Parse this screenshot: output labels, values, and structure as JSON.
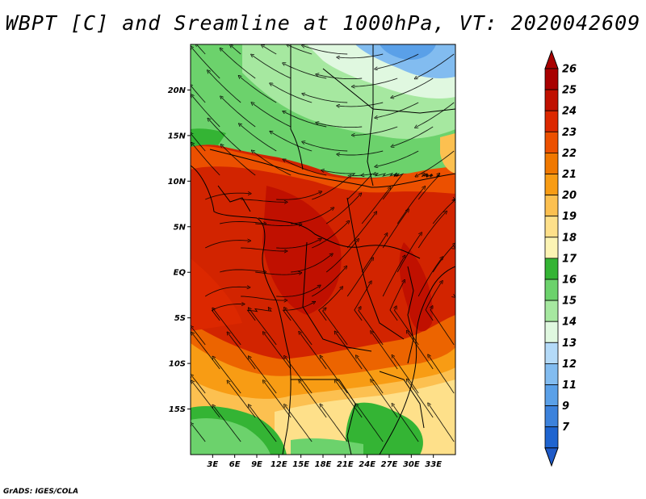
{
  "title": "WBPT [C] and Sreamline at 1000hPa, VT: 2020042609",
  "credit": "GrADS: IGES/COLA",
  "map": {
    "lat_range": [
      -20,
      25
    ],
    "lon_range": [
      0,
      36
    ],
    "lat_ticks": [
      {
        "label": "20N",
        "value": 20
      },
      {
        "label": "15N",
        "value": 15
      },
      {
        "label": "10N",
        "value": 10
      },
      {
        "label": "5N",
        "value": 5
      },
      {
        "label": "EQ",
        "value": 0
      },
      {
        "label": "5S",
        "value": -5
      },
      {
        "label": "10S",
        "value": -10
      },
      {
        "label": "15S",
        "value": -15
      }
    ],
    "lon_ticks": [
      {
        "label": "3E",
        "value": 3
      },
      {
        "label": "6E",
        "value": 6
      },
      {
        "label": "9E",
        "value": 9
      },
      {
        "label": "12E",
        "value": 12
      },
      {
        "label": "15E",
        "value": 15
      },
      {
        "label": "18E",
        "value": 18
      },
      {
        "label": "21E",
        "value": 21
      },
      {
        "label": "24E",
        "value": 24
      },
      {
        "label": "27E",
        "value": 27
      },
      {
        "label": "30E",
        "value": 30
      },
      {
        "label": "33E",
        "value": 33
      }
    ]
  },
  "colorbar": {
    "levels": [
      {
        "label": "26",
        "color": "#a80000"
      },
      {
        "label": "25",
        "color": "#c01000"
      },
      {
        "label": "24",
        "color": "#dc2800"
      },
      {
        "label": "23",
        "color": "#ec5000"
      },
      {
        "label": "22",
        "color": "#f07800"
      },
      {
        "label": "21",
        "color": "#f89c14"
      },
      {
        "label": "20",
        "color": "#fcc050"
      },
      {
        "label": "19",
        "color": "#fee08a"
      },
      {
        "label": "18",
        "color": "#fcf4b4"
      },
      {
        "label": "17",
        "color": "#34b434"
      },
      {
        "label": "16",
        "color": "#6cd26c"
      },
      {
        "label": "15",
        "color": "#a6e8a0"
      },
      {
        "label": "14",
        "color": "#e0f8e0"
      },
      {
        "label": "13",
        "color": "#b4daf8"
      },
      {
        "label": "12",
        "color": "#82bcf0"
      },
      {
        "label": "11",
        "color": "#5aa0e8"
      },
      {
        "label": "9",
        "color": "#3c82dc"
      },
      {
        "label": "7",
        "color": "#1e64d0"
      }
    ],
    "bottom_color": "#1e5ac8"
  }
}
